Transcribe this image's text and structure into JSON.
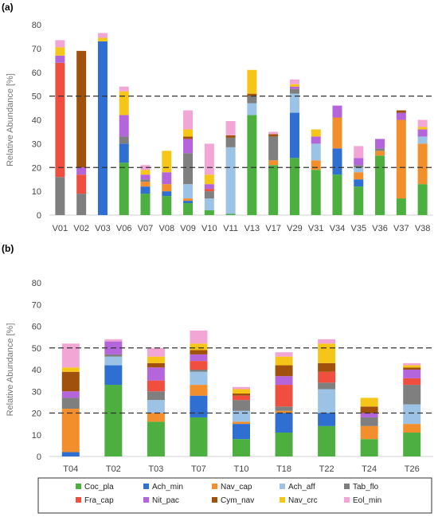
{
  "legend": {
    "entries": [
      {
        "key": "Coc_pla",
        "color": "#4DAF3F"
      },
      {
        "key": "Ach_min",
        "color": "#2E6FD1"
      },
      {
        "key": "Nav_cap",
        "color": "#F28E2B"
      },
      {
        "key": "Ach_aff",
        "color": "#9CC3E6"
      },
      {
        "key": "Tab_flo",
        "color": "#7F7F7F"
      },
      {
        "key": "Fra_cap",
        "color": "#F04E3E"
      },
      {
        "key": "Nit_pac",
        "color": "#B565DB"
      },
      {
        "key": "Cym_nav",
        "color": "#A0520C"
      },
      {
        "key": "Nav_crc",
        "color": "#F5C518"
      },
      {
        "key": "Eol_min",
        "color": "#F2A6D6"
      }
    ]
  },
  "chart_data": [
    {
      "type": "bar",
      "stacked": true,
      "panel_label": "(a)",
      "ylabel": "Relative Abundance [%]",
      "ylim": [
        0,
        80
      ],
      "yticks": [
        0,
        10,
        20,
        30,
        40,
        50,
        60,
        70,
        80
      ],
      "reference_lines": [
        20,
        50
      ],
      "categories": [
        "V01",
        "V02",
        "V03",
        "V06",
        "V07",
        "V08",
        "V09",
        "V10",
        "V11",
        "V13",
        "V17",
        "V29",
        "V31",
        "V34",
        "V35",
        "V36",
        "V37",
        "V38"
      ],
      "series": [
        {
          "key": "Coc_pla",
          "values": [
            0,
            0,
            0,
            22,
            9,
            8,
            5,
            2,
            0.5,
            42,
            21,
            24,
            19,
            17,
            12,
            25,
            7,
            13
          ]
        },
        {
          "key": "Ach_min",
          "values": [
            0,
            0,
            73,
            8,
            3,
            2,
            1,
            0,
            0,
            0,
            0,
            19,
            0,
            11,
            3,
            0,
            0,
            0
          ]
        },
        {
          "key": "Nav_cap",
          "values": [
            0,
            0,
            0,
            0,
            2,
            3,
            1,
            0,
            0,
            0,
            2,
            0,
            4,
            13,
            3,
            2,
            33,
            17
          ]
        },
        {
          "key": "Ach_aff",
          "values": [
            0,
            0,
            0,
            0,
            0,
            0,
            6,
            5,
            28,
            5,
            0,
            8,
            7,
            0,
            2,
            0,
            0,
            3
          ]
        },
        {
          "key": "Tab_flo",
          "values": [
            16,
            9,
            0,
            3,
            1,
            0,
            13,
            3,
            4,
            3,
            10,
            2,
            0,
            0,
            1,
            1,
            0,
            0
          ]
        },
        {
          "key": "Fra_cap",
          "values": [
            48,
            8,
            0,
            0,
            0,
            0,
            0,
            1,
            0,
            0,
            0,
            0,
            0,
            0,
            0,
            0,
            0,
            0
          ]
        },
        {
          "key": "Nit_pac",
          "values": [
            3,
            3,
            0,
            9,
            2,
            5,
            6,
            2,
            0,
            0,
            0,
            1,
            3,
            5,
            3,
            4,
            3,
            3
          ]
        },
        {
          "key": "Cym_nav",
          "values": [
            0,
            49,
            0,
            0,
            0,
            0,
            1,
            0,
            1,
            1,
            1,
            0,
            0,
            0,
            0,
            0,
            1,
            0
          ]
        },
        {
          "key": "Nav_crc",
          "values": [
            3.5,
            0,
            1.5,
            10,
            2,
            9,
            3,
            4,
            0,
            10,
            0,
            1,
            3,
            0,
            0,
            0,
            0,
            1
          ]
        },
        {
          "key": "Eol_min",
          "values": [
            3,
            0,
            2,
            2,
            2,
            0,
            8,
            13,
            6,
            0,
            1,
            2,
            0,
            0,
            5,
            0,
            0,
            3
          ]
        }
      ]
    },
    {
      "type": "bar",
      "stacked": true,
      "panel_label": "(b)",
      "ylabel": "Relative Abundance [%]",
      "ylim": [
        0,
        80
      ],
      "yticks": [
        0,
        10,
        20,
        30,
        40,
        50,
        60,
        70,
        80
      ],
      "reference_lines": [
        20,
        50
      ],
      "categories": [
        "T04",
        "T02",
        "T03",
        "T07",
        "T10",
        "T18",
        "T22",
        "T24",
        "T26"
      ],
      "series": [
        {
          "key": "Coc_pla",
          "values": [
            0,
            33,
            16,
            18,
            8,
            11,
            14,
            8,
            11
          ]
        },
        {
          "key": "Ach_min",
          "values": [
            2,
            9,
            0,
            10,
            7,
            9,
            6,
            0,
            0
          ]
        },
        {
          "key": "Nav_cap",
          "values": [
            20,
            0,
            4,
            5,
            1,
            1,
            0,
            6,
            4
          ]
        },
        {
          "key": "Ach_aff",
          "values": [
            0,
            4,
            6,
            6,
            5,
            0,
            11,
            0,
            9
          ]
        },
        {
          "key": "Tab_flo",
          "values": [
            5,
            1,
            4,
            1,
            5,
            2,
            3,
            4,
            9
          ]
        },
        {
          "key": "Fra_cap",
          "values": [
            0,
            0,
            5,
            4,
            2,
            10,
            5,
            0,
            3
          ]
        },
        {
          "key": "Nit_pac",
          "values": [
            3,
            6,
            6,
            3,
            0,
            4,
            0,
            2,
            4
          ]
        },
        {
          "key": "Cym_nav",
          "values": [
            9,
            0,
            2,
            2,
            1,
            5,
            4,
            3,
            1
          ]
        },
        {
          "key": "Nav_crc",
          "values": [
            2,
            0,
            3,
            3,
            2,
            4,
            9,
            4,
            1
          ]
        },
        {
          "key": "Eol_min",
          "values": [
            11,
            1,
            4,
            6,
            1,
            2,
            2,
            0,
            1
          ]
        }
      ]
    }
  ]
}
